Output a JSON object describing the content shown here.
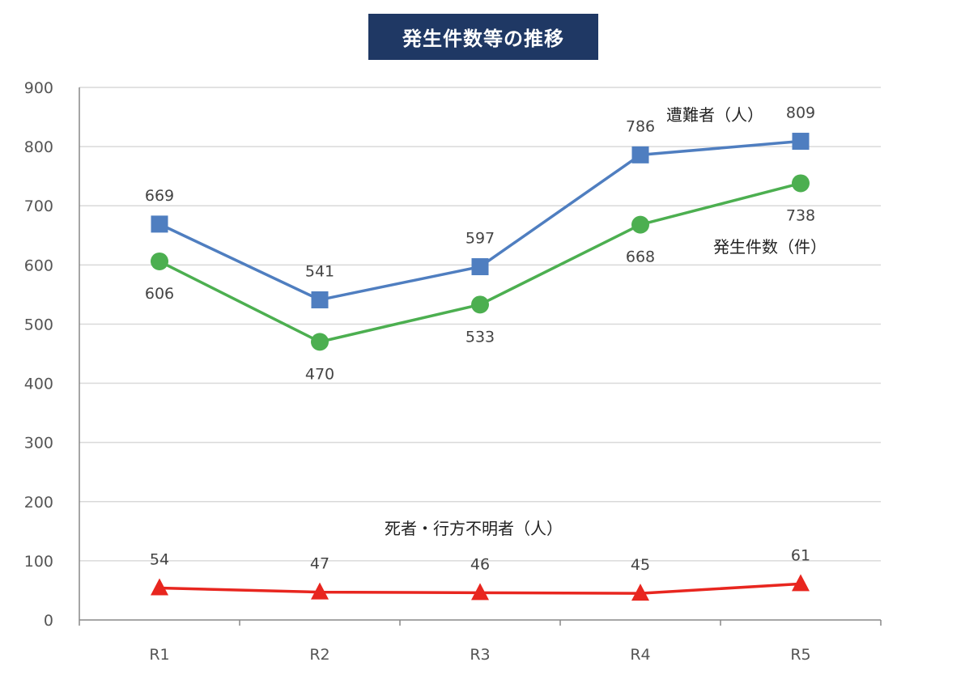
{
  "chart_data": {
    "type": "line",
    "title": "発生件数等の推移",
    "categories": [
      "R1",
      "R2",
      "R3",
      "R4",
      "R5"
    ],
    "ylim": [
      0,
      900
    ],
    "yticks": [
      0,
      100,
      200,
      300,
      400,
      500,
      600,
      700,
      800,
      900
    ],
    "grid": true,
    "series": [
      {
        "key": "victims",
        "name": "遭難者（人）",
        "color": "#4f7ec0",
        "marker": "square",
        "values": [
          669,
          541,
          597,
          786,
          809
        ],
        "label_pos": [
          "above",
          "above",
          "above",
          "above",
          "above"
        ]
      },
      {
        "key": "incidents",
        "name": "発生件数（件）",
        "color": "#4caf50",
        "marker": "circle",
        "values": [
          606,
          470,
          533,
          668,
          738
        ],
        "label_pos": [
          "below",
          "below",
          "below",
          "below",
          "below"
        ]
      },
      {
        "key": "deaths",
        "name": "死者・行方不明者（人）",
        "color": "#e8261f",
        "marker": "triangle",
        "values": [
          54,
          47,
          46,
          45,
          61
        ],
        "label_pos": [
          "above",
          "above",
          "above",
          "above",
          "above"
        ]
      }
    ]
  }
}
